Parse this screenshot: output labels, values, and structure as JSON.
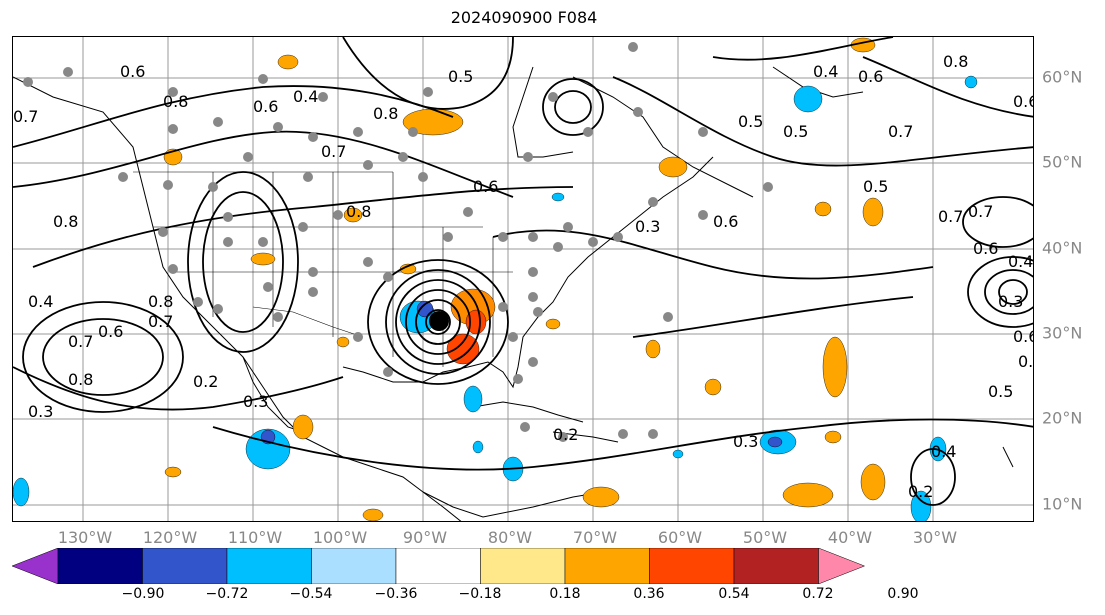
{
  "title": "2024090900 F084",
  "lon_labels": [
    "130°W",
    "120°W",
    "110°W",
    "100°W",
    "90°W",
    "80°W",
    "70°W",
    "60°W",
    "50°W",
    "40°W",
    "30°W"
  ],
  "lat_labels": [
    "60°N",
    "50°N",
    "40°N",
    "30°N",
    "20°N",
    "10°N"
  ],
  "colorbar": {
    "ticks": [
      "−0.90",
      "−0.72",
      "−0.54",
      "−0.36",
      "−0.18",
      "0.18",
      "0.36",
      "0.54",
      "0.72",
      "0.90"
    ],
    "colors": [
      "#9932cc",
      "#000080",
      "#3355cc",
      "#00bfff",
      "#aadfff",
      "#ffffff",
      "#ffe88a",
      "#ffa500",
      "#ff4500",
      "#b22222",
      "#ff88aa"
    ]
  },
  "contour_labels": [
    "0.6",
    "0.8",
    "0.6",
    "0.4",
    "0.5",
    "0.7",
    "0.8",
    "0.5",
    "0.4",
    "0.6",
    "0.8",
    "0.6",
    "0.7",
    "0.5",
    "0.7",
    "0.6",
    "0.3",
    "0.6",
    "0.5",
    "0.7",
    "0.6",
    "0.4",
    "0.3",
    "0.6",
    "0.8",
    "0.4",
    "0.7",
    "0.8",
    "0.6",
    "0.2",
    "0.3",
    "0.3",
    "0.2",
    "0.3",
    "0.4",
    "0.2",
    "0.5",
    "0.6",
    "0.7",
    "0.8",
    "0.8",
    "0.7"
  ]
}
